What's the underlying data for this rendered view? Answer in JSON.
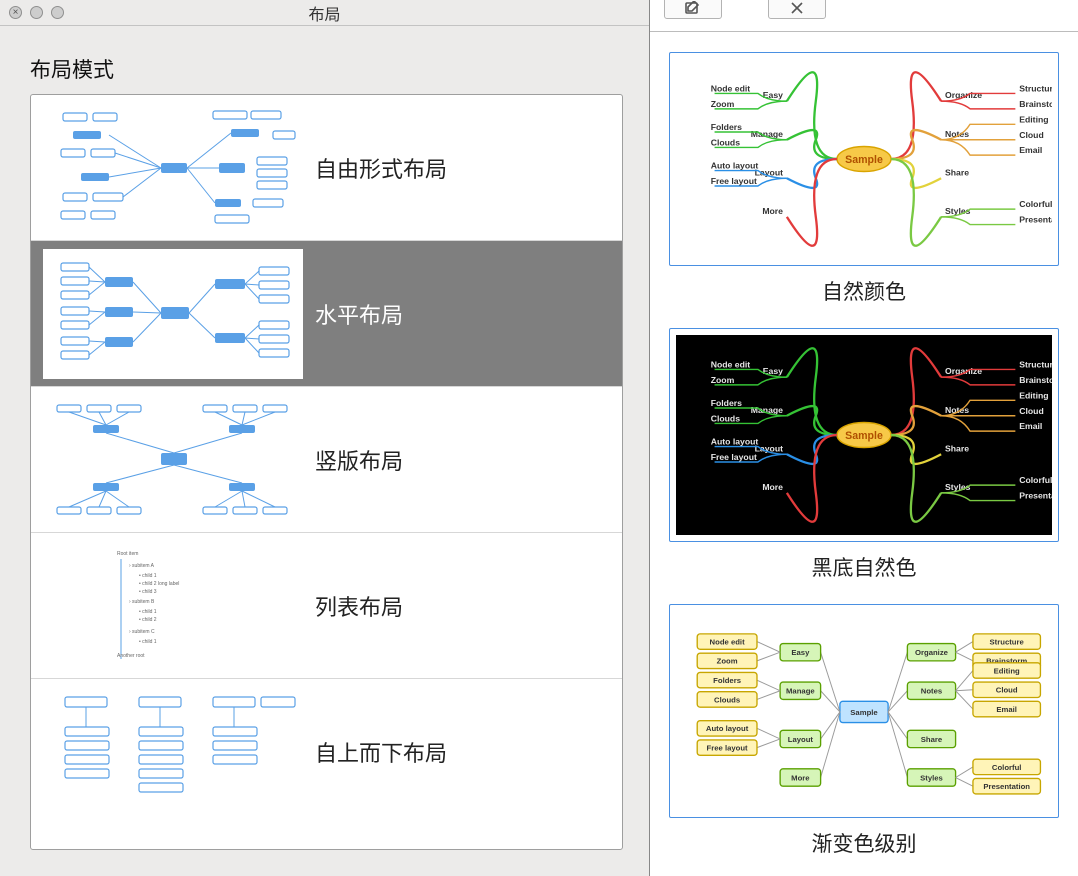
{
  "dialog": {
    "title": "布局",
    "section_label": "布局模式",
    "layouts": [
      {
        "id": "free",
        "label": "自由形式布局",
        "selected": false
      },
      {
        "id": "horizontal",
        "label": "水平布局",
        "selected": true
      },
      {
        "id": "vertical",
        "label": "竖版布局",
        "selected": false
      },
      {
        "id": "list",
        "label": "列表布局",
        "selected": false
      },
      {
        "id": "topdown",
        "label": "自上而下布局",
        "selected": false
      }
    ],
    "thumb_colors": {
      "node": "#5aa0e6",
      "hollow_stroke": "#5aa0e6",
      "line": "#5aa0e6",
      "bg": "#ffffff"
    }
  },
  "style_panel": {
    "cards": [
      {
        "id": "natural",
        "caption": "自然颜色",
        "bg": "#ffffff",
        "text_on_bg": "#333333"
      },
      {
        "id": "natural-dark",
        "caption": "黑底自然色",
        "bg": "#000000",
        "text_on_bg": "#e6e6e6"
      },
      {
        "id": "gradient-box",
        "caption": "渐变色级别",
        "bg": "#ffffff",
        "text_on_bg": "#333333"
      }
    ],
    "mindmap": {
      "center_label": "Sample",
      "center_fill": "#f7c948",
      "center_stroke": "#d9a400",
      "left_main": [
        {
          "label": "Easy",
          "color": "#35c235"
        },
        {
          "label": "Manage",
          "color": "#35c235"
        },
        {
          "label": "Layout",
          "color": "#2a8fe6"
        },
        {
          "label": "More",
          "color": "#e23b3b"
        }
      ],
      "right_main": [
        {
          "label": "Organize",
          "color": "#e23b3b"
        },
        {
          "label": "Notes",
          "color": "#e2a13b"
        },
        {
          "label": "Share",
          "color": "#e2d23b"
        },
        {
          "label": "Styles",
          "color": "#7ac943"
        }
      ],
      "left_leaves": [
        [
          "Node edit",
          "Zoom"
        ],
        [
          "Folders",
          "Clouds"
        ],
        [
          "Auto layout",
          "Free layout"
        ],
        []
      ],
      "right_leaves": [
        [
          "Structure",
          "Brainstorm"
        ],
        [
          "Editing",
          "Cloud",
          "Email"
        ],
        [],
        [
          "Colorful",
          "Presentation"
        ]
      ]
    },
    "boxed": {
      "center_label": "Sample",
      "center_fill": "#bfe3ff",
      "center_stroke": "#2a8fe6",
      "node_fill": "#fff4b8",
      "node_stroke": "#c7a600",
      "hub_fill": "#d6f5b8",
      "hub_stroke": "#5aa000",
      "line": "#9a9a9a",
      "left_hubs": [
        "Easy",
        "Manage",
        "Layout",
        "More"
      ],
      "right_hubs": [
        "Organize",
        "Notes",
        "Share",
        "Styles"
      ],
      "left_leaves": [
        [
          "Node edit",
          "Zoom"
        ],
        [
          "Folders",
          "Clouds"
        ],
        [
          "Auto layout",
          "Free layout"
        ],
        []
      ],
      "right_leaves": [
        [
          "Structure",
          "Brainstorm"
        ],
        [
          "Editing",
          "Cloud",
          "Email"
        ],
        [],
        [
          "Colorful",
          "Presentation"
        ]
      ]
    }
  }
}
